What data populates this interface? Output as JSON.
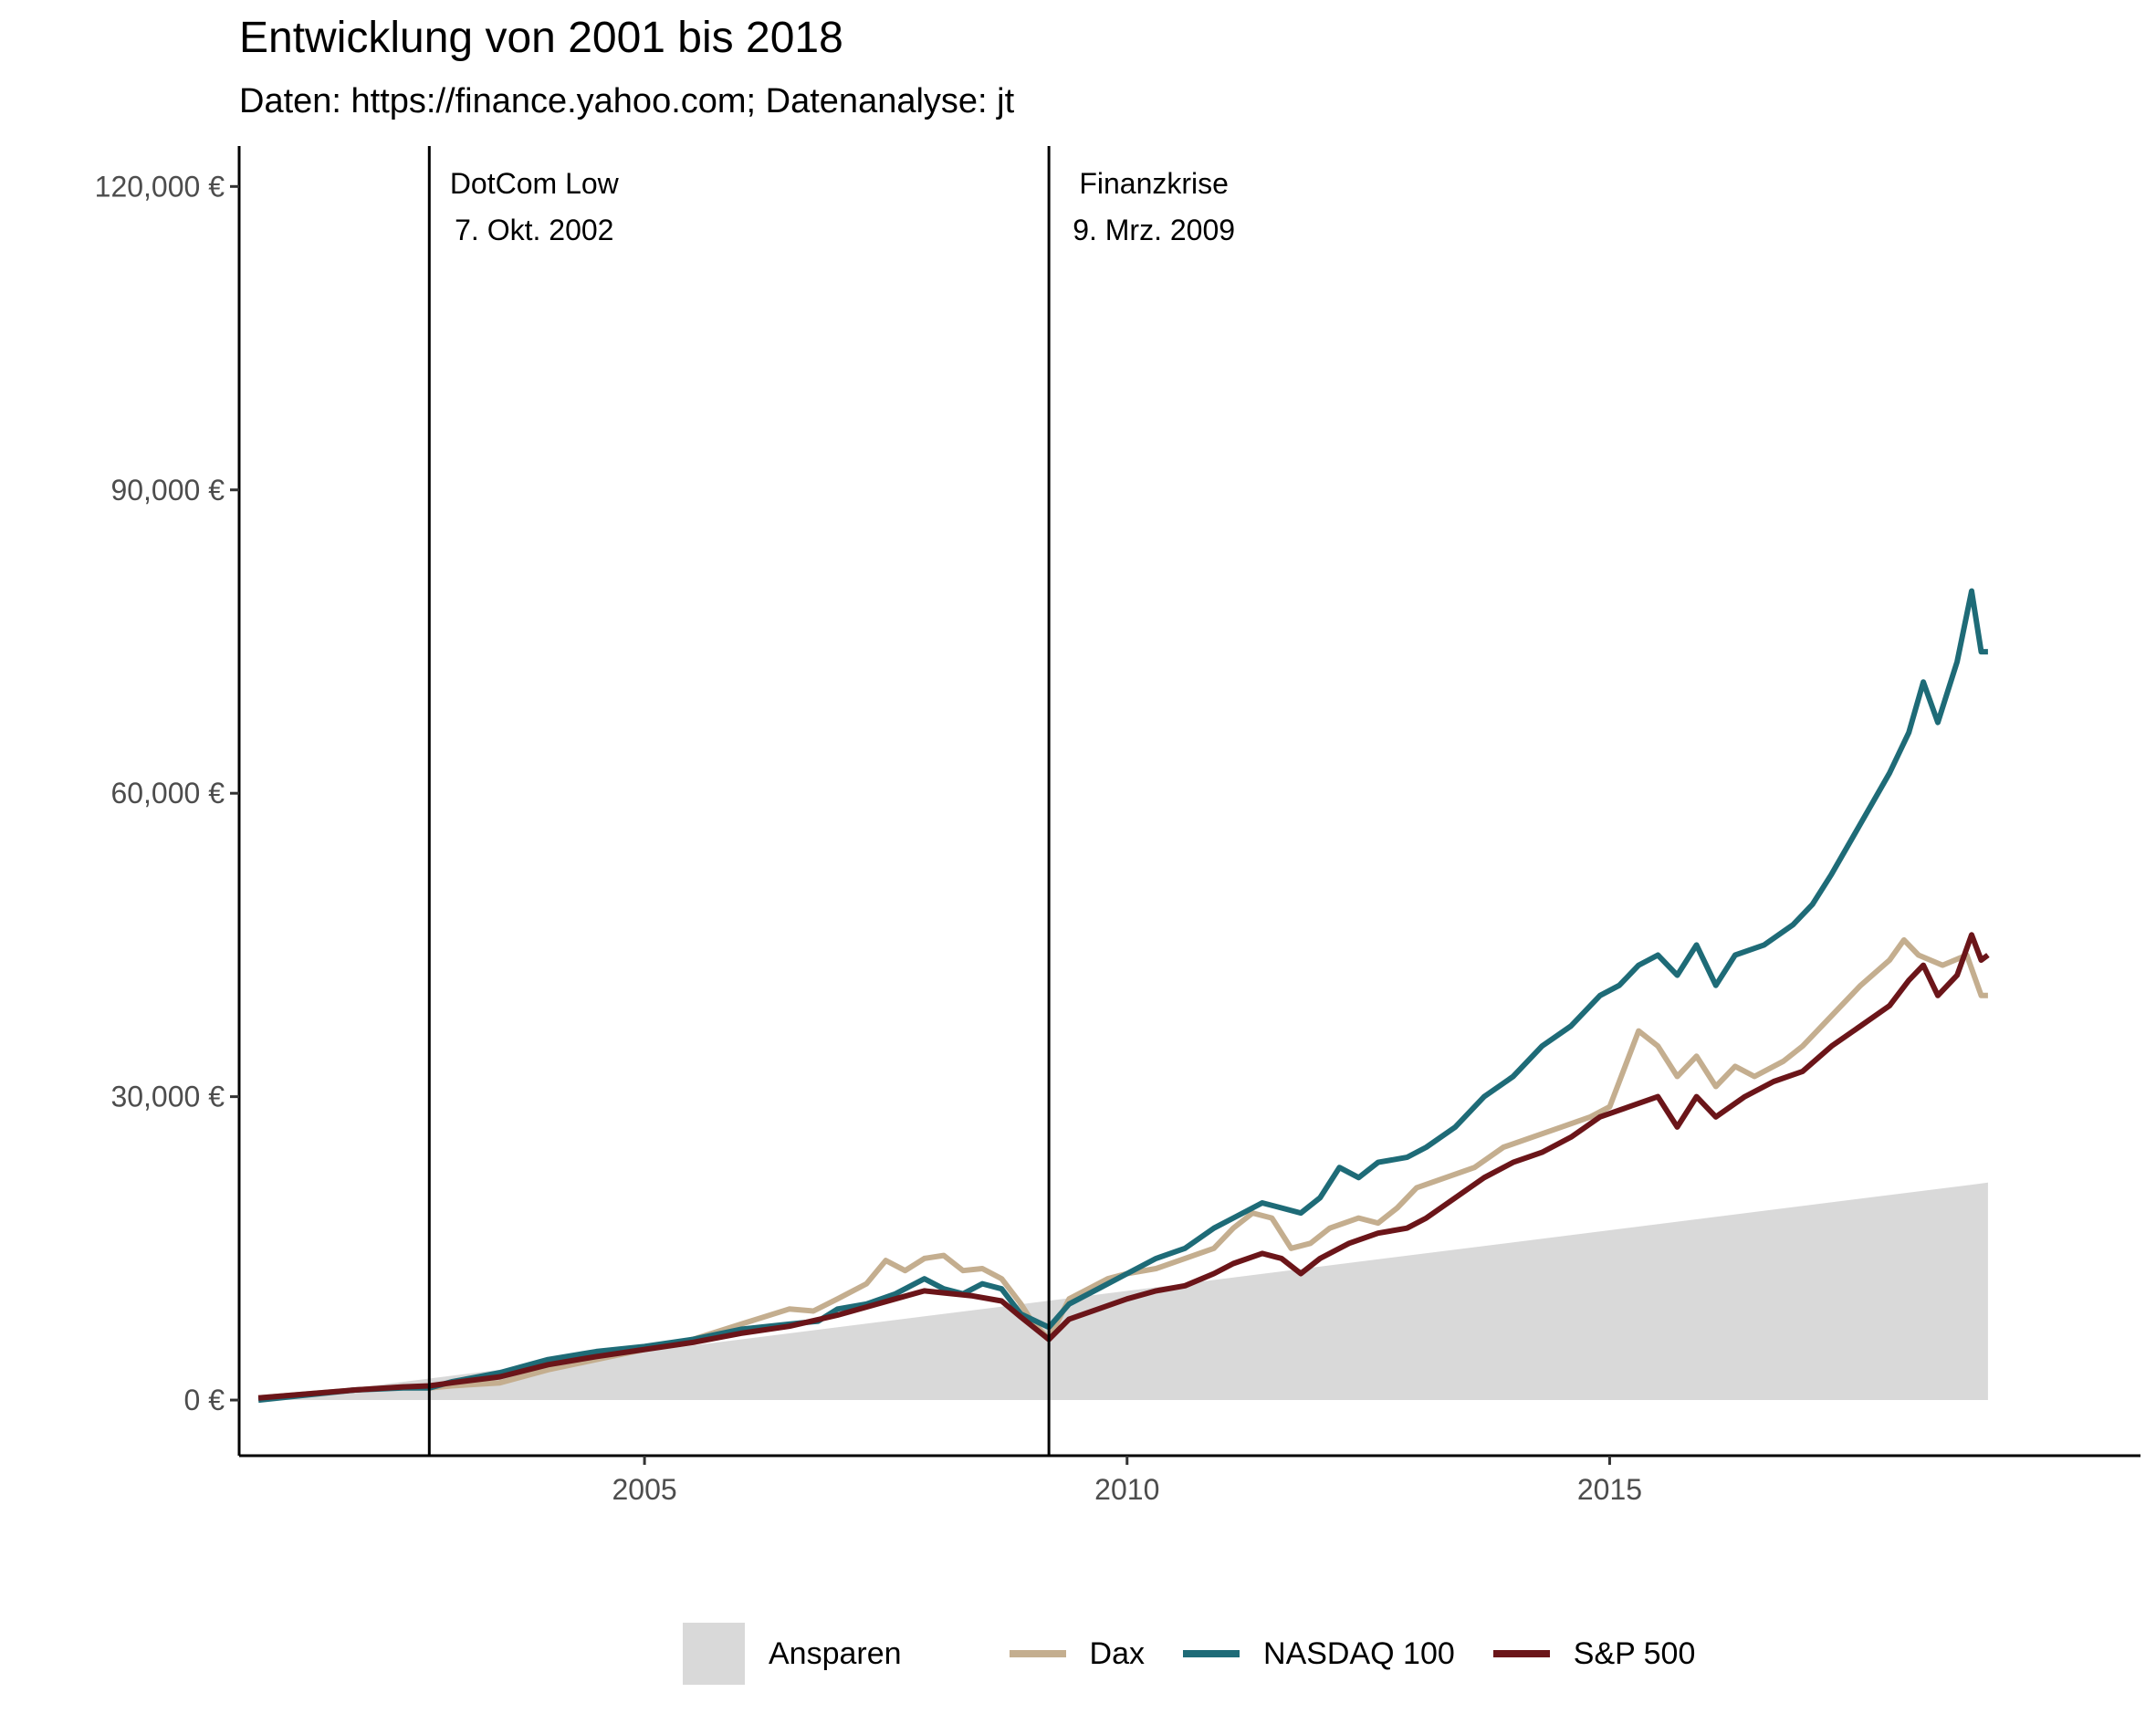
{
  "title": "Entwicklung von 2001 bis 2018",
  "subtitle": "Daten: https://finance.yahoo.com; Datenanalyse: jt",
  "chart_data": {
    "type": "line",
    "xlim": [
      2000.8,
      2020.5
    ],
    "ylim": [
      -5500,
      124000
    ],
    "y_ticks": [
      0,
      30000,
      60000,
      90000,
      120000
    ],
    "y_tick_labels": [
      "0 €",
      "30,000 €",
      "60,000 €",
      "90,000 €",
      "120,000 €"
    ],
    "x_ticks": [
      2005,
      2010,
      2015
    ],
    "x_tick_labels": [
      "2005",
      "2010",
      "2015"
    ],
    "grid": false,
    "legend_position": "bottom",
    "annotations": [
      {
        "x": 2002.77,
        "line1": "DotCom Low",
        "line2": "7. Okt. 2002"
      },
      {
        "x": 2009.19,
        "line1": "Finanzkrise",
        "line2": "9. Mrz. 2009"
      }
    ],
    "area": {
      "name": "Ansparen",
      "color": "#d9d9d9",
      "x": [
        2001.0,
        2018.92
      ],
      "y": [
        0,
        21500
      ]
    },
    "series": [
      {
        "name": "Dax",
        "color": "#c4ae8f",
        "points": [
          [
            2001.0,
            200
          ],
          [
            2001.5,
            600
          ],
          [
            2002.0,
            1000
          ],
          [
            2002.5,
            1300
          ],
          [
            2002.77,
            1200
          ],
          [
            2003.0,
            1400
          ],
          [
            2003.5,
            1700
          ],
          [
            2004.0,
            3000
          ],
          [
            2004.5,
            4000
          ],
          [
            2005.0,
            5000
          ],
          [
            2005.5,
            6000
          ],
          [
            2006.0,
            7500
          ],
          [
            2006.5,
            9000
          ],
          [
            2006.75,
            8800
          ],
          [
            2007.0,
            10000
          ],
          [
            2007.3,
            11500
          ],
          [
            2007.5,
            13800
          ],
          [
            2007.7,
            12800
          ],
          [
            2007.9,
            14000
          ],
          [
            2008.1,
            14300
          ],
          [
            2008.3,
            12800
          ],
          [
            2008.5,
            13000
          ],
          [
            2008.7,
            12000
          ],
          [
            2008.9,
            9500
          ],
          [
            2009.0,
            8000
          ],
          [
            2009.19,
            6000
          ],
          [
            2009.4,
            10000
          ],
          [
            2009.6,
            11000
          ],
          [
            2009.8,
            12000
          ],
          [
            2010.0,
            12500
          ],
          [
            2010.3,
            13000
          ],
          [
            2010.6,
            14000
          ],
          [
            2010.9,
            15000
          ],
          [
            2011.1,
            17000
          ],
          [
            2011.3,
            18500
          ],
          [
            2011.5,
            18000
          ],
          [
            2011.7,
            15000
          ],
          [
            2011.9,
            15500
          ],
          [
            2012.1,
            17000
          ],
          [
            2012.4,
            18000
          ],
          [
            2012.6,
            17500
          ],
          [
            2012.8,
            19000
          ],
          [
            2013.0,
            21000
          ],
          [
            2013.3,
            22000
          ],
          [
            2013.6,
            23000
          ],
          [
            2013.9,
            25000
          ],
          [
            2014.2,
            26000
          ],
          [
            2014.5,
            27000
          ],
          [
            2014.8,
            28000
          ],
          [
            2015.0,
            29000
          ],
          [
            2015.3,
            36500
          ],
          [
            2015.5,
            35000
          ],
          [
            2015.7,
            32000
          ],
          [
            2015.9,
            34000
          ],
          [
            2016.1,
            31000
          ],
          [
            2016.3,
            33000
          ],
          [
            2016.5,
            32000
          ],
          [
            2016.8,
            33500
          ],
          [
            2017.0,
            35000
          ],
          [
            2017.3,
            38000
          ],
          [
            2017.6,
            41000
          ],
          [
            2017.9,
            43500
          ],
          [
            2018.05,
            45500
          ],
          [
            2018.2,
            44000
          ],
          [
            2018.45,
            43000
          ],
          [
            2018.7,
            44000
          ],
          [
            2018.85,
            40000
          ],
          [
            2018.92,
            40000
          ]
        ]
      },
      {
        "name": "NASDAQ 100",
        "color": "#1e6b77",
        "points": [
          [
            2001.0,
            0
          ],
          [
            2001.5,
            500
          ],
          [
            2002.0,
            1000
          ],
          [
            2002.5,
            1200
          ],
          [
            2002.77,
            1200
          ],
          [
            2003.0,
            1800
          ],
          [
            2003.5,
            2700
          ],
          [
            2004.0,
            4000
          ],
          [
            2004.5,
            4800
          ],
          [
            2005.0,
            5300
          ],
          [
            2005.5,
            6000
          ],
          [
            2006.0,
            7000
          ],
          [
            2006.5,
            7500
          ],
          [
            2006.8,
            7800
          ],
          [
            2007.0,
            9000
          ],
          [
            2007.3,
            9500
          ],
          [
            2007.6,
            10500
          ],
          [
            2007.9,
            12000
          ],
          [
            2008.1,
            11000
          ],
          [
            2008.3,
            10500
          ],
          [
            2008.5,
            11500
          ],
          [
            2008.7,
            11000
          ],
          [
            2008.9,
            8500
          ],
          [
            2009.19,
            7200
          ],
          [
            2009.4,
            9500
          ],
          [
            2009.7,
            11000
          ],
          [
            2010.0,
            12500
          ],
          [
            2010.3,
            14000
          ],
          [
            2010.6,
            15000
          ],
          [
            2010.9,
            17000
          ],
          [
            2011.1,
            18000
          ],
          [
            2011.4,
            19500
          ],
          [
            2011.6,
            19000
          ],
          [
            2011.8,
            18500
          ],
          [
            2012.0,
            20000
          ],
          [
            2012.2,
            23000
          ],
          [
            2012.4,
            22000
          ],
          [
            2012.6,
            23500
          ],
          [
            2012.9,
            24000
          ],
          [
            2013.1,
            25000
          ],
          [
            2013.4,
            27000
          ],
          [
            2013.7,
            30000
          ],
          [
            2014.0,
            32000
          ],
          [
            2014.3,
            35000
          ],
          [
            2014.6,
            37000
          ],
          [
            2014.9,
            40000
          ],
          [
            2015.1,
            41000
          ],
          [
            2015.3,
            43000
          ],
          [
            2015.5,
            44000
          ],
          [
            2015.7,
            42000
          ],
          [
            2015.9,
            45000
          ],
          [
            2016.1,
            41000
          ],
          [
            2016.3,
            44000
          ],
          [
            2016.6,
            45000
          ],
          [
            2016.9,
            47000
          ],
          [
            2017.1,
            49000
          ],
          [
            2017.3,
            52000
          ],
          [
            2017.6,
            57000
          ],
          [
            2017.9,
            62000
          ],
          [
            2018.1,
            66000
          ],
          [
            2018.25,
            71000
          ],
          [
            2018.4,
            67000
          ],
          [
            2018.6,
            73000
          ],
          [
            2018.75,
            80000
          ],
          [
            2018.85,
            74000
          ],
          [
            2018.92,
            74000
          ]
        ]
      },
      {
        "name": "S&P 500",
        "color": "#6b1519",
        "points": [
          [
            2001.0,
            200
          ],
          [
            2001.5,
            600
          ],
          [
            2002.0,
            1000
          ],
          [
            2002.5,
            1300
          ],
          [
            2002.77,
            1400
          ],
          [
            2003.0,
            1700
          ],
          [
            2003.5,
            2300
          ],
          [
            2004.0,
            3500
          ],
          [
            2004.5,
            4300
          ],
          [
            2005.0,
            5000
          ],
          [
            2005.5,
            5700
          ],
          [
            2006.0,
            6600
          ],
          [
            2006.5,
            7300
          ],
          [
            2007.0,
            8400
          ],
          [
            2007.3,
            9200
          ],
          [
            2007.6,
            10000
          ],
          [
            2007.9,
            10800
          ],
          [
            2008.1,
            10600
          ],
          [
            2008.4,
            10300
          ],
          [
            2008.7,
            9800
          ],
          [
            2008.9,
            8200
          ],
          [
            2009.19,
            6000
          ],
          [
            2009.4,
            8000
          ],
          [
            2009.7,
            9000
          ],
          [
            2010.0,
            10000
          ],
          [
            2010.3,
            10800
          ],
          [
            2010.6,
            11300
          ],
          [
            2010.9,
            12500
          ],
          [
            2011.1,
            13500
          ],
          [
            2011.4,
            14500
          ],
          [
            2011.6,
            14000
          ],
          [
            2011.8,
            12500
          ],
          [
            2012.0,
            14000
          ],
          [
            2012.3,
            15500
          ],
          [
            2012.6,
            16500
          ],
          [
            2012.9,
            17000
          ],
          [
            2013.1,
            18000
          ],
          [
            2013.4,
            20000
          ],
          [
            2013.7,
            22000
          ],
          [
            2014.0,
            23500
          ],
          [
            2014.3,
            24500
          ],
          [
            2014.6,
            26000
          ],
          [
            2014.9,
            28000
          ],
          [
            2015.2,
            29000
          ],
          [
            2015.5,
            30000
          ],
          [
            2015.7,
            27000
          ],
          [
            2015.9,
            30000
          ],
          [
            2016.1,
            28000
          ],
          [
            2016.4,
            30000
          ],
          [
            2016.7,
            31500
          ],
          [
            2017.0,
            32500
          ],
          [
            2017.3,
            35000
          ],
          [
            2017.6,
            37000
          ],
          [
            2017.9,
            39000
          ],
          [
            2018.1,
            41500
          ],
          [
            2018.25,
            43000
          ],
          [
            2018.4,
            40000
          ],
          [
            2018.6,
            42000
          ],
          [
            2018.75,
            46000
          ],
          [
            2018.85,
            43500
          ],
          [
            2018.92,
            44000
          ]
        ]
      }
    ]
  },
  "legend": {
    "area_label": "Ansparen",
    "dax_label": "Dax",
    "nasdaq_label": "NASDAQ 100",
    "sp500_label": "S&P 500"
  }
}
